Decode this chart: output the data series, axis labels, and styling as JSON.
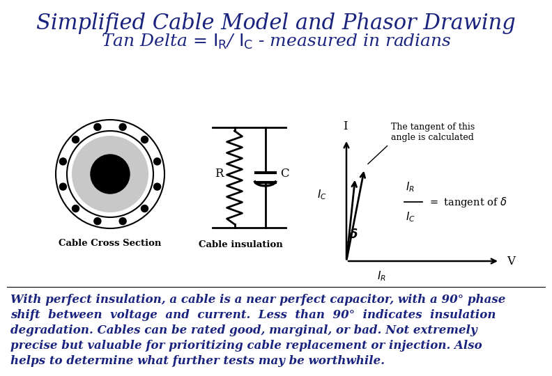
{
  "title_line1": "Simplified Cable Model and Phasor Drawing",
  "title_line2": "Tan Delta = I$_{R}$/ I$_{C}$ - measured in radians",
  "title_color": "#1a237e",
  "bg_color": "#ffffff",
  "body_text": "With perfect insulation, a cable is a near perfect capacitor, with a 90° phase shift between voltage and current. Less than 90° indicates insulation degradation. Cables can be rated good, marginal, or bad. Not extremely precise but valuable for prioritizing cable replacement or injection. Also helps to determine what further tests may be worthwhile.",
  "body_color": "#1a237e",
  "label_cable": "Cable Cross Section",
  "label_insulation": "Cable insulation",
  "label_R": "R",
  "label_C": "C",
  "ann_text": "The tangent of this\nangle is calculated"
}
